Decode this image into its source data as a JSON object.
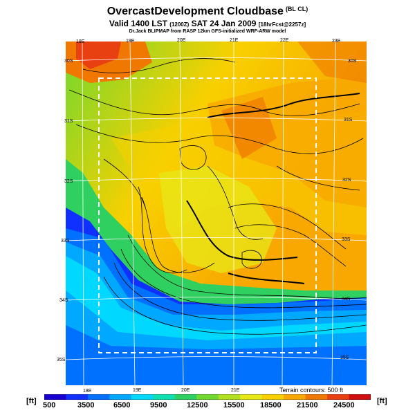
{
  "title": {
    "main": "OvercastDevelopment Cloudbase",
    "main_tag": "(BL CL)",
    "valid_line": "Valid 1400 LST",
    "valid_code": "(1200Z)",
    "valid_date": "SAT 24 Jan 2009",
    "valid_run": "[18hrFcst@2257z]",
    "credit": "Dr.Jack BLIPMAP from RASP 12km GFS-initialized WRF-ARW model"
  },
  "map": {
    "top_lon_labels": [
      "18E",
      "19E",
      "20E",
      "21E",
      "22E",
      "23E"
    ],
    "bottom_lon_labels": [
      "18E",
      "19E",
      "20E",
      "21E"
    ],
    "left_lat_labels": [
      "30S",
      "31S",
      "32S",
      "33S",
      "34S",
      "35S"
    ],
    "right_lat_labels": [
      "30S",
      "31S",
      "32S",
      "33S",
      "34S",
      "35S"
    ],
    "terrain_note": "Terrain contours: 500 ft"
  },
  "legend": {
    "unit_left": "[ft]",
    "unit_right": "[ft]",
    "scale_labels": [
      "500",
      "3500",
      "6500",
      "9500",
      "12500",
      "15500",
      "18500",
      "21500",
      "24500"
    ],
    "colors": [
      "#1a00d0",
      "#1030ff",
      "#0070ff",
      "#00a8ff",
      "#00d8ff",
      "#10e0b0",
      "#30d060",
      "#70d830",
      "#b0e020",
      "#e8e818",
      "#f8d000",
      "#f8a800",
      "#f07800",
      "#e84010",
      "#d01010"
    ]
  }
}
